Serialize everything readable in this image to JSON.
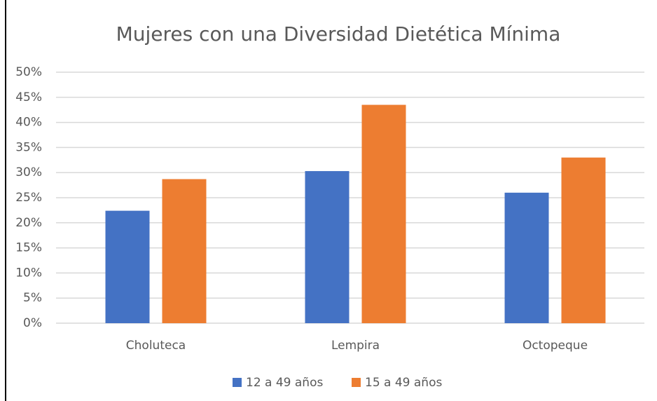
{
  "chart_data": {
    "type": "bar",
    "title": "Mujeres con una Diversidad Dietética Mínima",
    "categories": [
      "Choluteca",
      "Lempira",
      "Octopeque"
    ],
    "series": [
      {
        "name": "12 a 49 años",
        "color": "#4472c4",
        "values": [
          22.4,
          30.3,
          26
        ]
      },
      {
        "name": "15 a 49 años",
        "color": "#ed7d31",
        "values": [
          28.7,
          43.5,
          33
        ]
      }
    ],
    "ylim": [
      0,
      50
    ],
    "yticks": [
      {
        "value": 0,
        "label": "0%"
      },
      {
        "value": 5,
        "label": "5%"
      },
      {
        "value": 10,
        "label": "10%"
      },
      {
        "value": 15,
        "label": "15%"
      },
      {
        "value": 20,
        "label": "20%"
      },
      {
        "value": 25,
        "label": "25%"
      },
      {
        "value": 30,
        "label": "30%"
      },
      {
        "value": 35,
        "label": "35%"
      },
      {
        "value": 40,
        "label": "40%"
      },
      {
        "value": 45,
        "label": "45%"
      },
      {
        "value": 50,
        "label": "50%"
      }
    ],
    "grid": true,
    "legend": "bottom"
  }
}
